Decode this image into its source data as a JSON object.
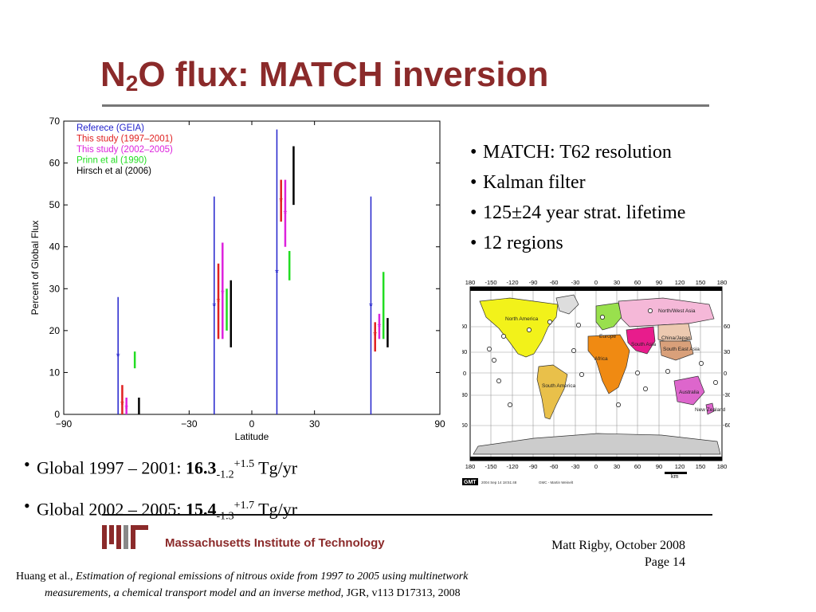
{
  "slide": {
    "title_main": "N",
    "title_sub": "2",
    "title_rest": "O flux: MATCH inversion"
  },
  "right_bullets": [
    "MATCH: T62 resolution",
    "Kalman filter",
    "125±24 year strat. lifetime",
    "12 regions"
  ],
  "bottom_bullets": [
    {
      "prefix": "Global 1997 – 2001: ",
      "value": "16.3",
      "minus": "-1.2",
      "plus": "+1.5",
      "unit": " Tg/yr"
    },
    {
      "prefix": "Global 2002 – 2005: ",
      "value": "15.4",
      "minus": "-1.3",
      "plus": "+1.7",
      "unit": " Tg/yr"
    }
  ],
  "bullet_symbol": "•",
  "chart_data": {
    "type": "scatter",
    "title": "",
    "xlabel": "Latitude",
    "ylabel": "Percent of Global Flux",
    "xlim": [
      -90,
      90
    ],
    "ylim": [
      0,
      70
    ],
    "xticks": [
      "−90",
      "−30",
      "0",
      "30",
      "90"
    ],
    "xtick_values": [
      -90,
      -30,
      0,
      30,
      90
    ],
    "yticks": [
      0,
      10,
      20,
      30,
      40,
      50,
      60,
      70
    ],
    "legend_position": "top-left",
    "series": [
      {
        "name": "Referece (GEIA)",
        "color": "#2222cc",
        "marker": "*",
        "points": [
          {
            "x": -64,
            "y": 14,
            "low": 0,
            "high": 28
          },
          {
            "x": -18,
            "y": 26,
            "low": 0,
            "high": 52
          },
          {
            "x": 12,
            "y": 34,
            "low": 0,
            "high": 68
          },
          {
            "x": 57,
            "y": 26,
            "low": 0,
            "high": 52
          }
        ]
      },
      {
        "name": "This study (1997–2001)",
        "color": "#e02020",
        "marker": "*",
        "points": [
          {
            "x": -62,
            "y": 2.5,
            "low": 0,
            "high": 7
          },
          {
            "x": -16,
            "y": 27,
            "low": 18,
            "high": 36
          },
          {
            "x": 14,
            "y": 51,
            "low": 46,
            "high": 56
          },
          {
            "x": 59,
            "y": 19,
            "low": 15,
            "high": 22
          }
        ]
      },
      {
        "name": "This study (2002–2005)",
        "color": "#dd22dd",
        "marker": "*",
        "points": [
          {
            "x": -60,
            "y": 1.5,
            "low": 0,
            "high": 4
          },
          {
            "x": -14,
            "y": 29,
            "low": 18,
            "high": 41
          },
          {
            "x": 16,
            "y": 48,
            "low": 40,
            "high": 56
          },
          {
            "x": 61,
            "y": 21,
            "low": 18,
            "high": 24
          }
        ]
      },
      {
        "name": "Prinn et al (1990)",
        "color": "#22dd22",
        "marker": "none",
        "points": [
          {
            "x": -56,
            "y": 12.5,
            "low": 11,
            "high": 15
          },
          {
            "x": -12,
            "y": 25,
            "low": 20,
            "high": 30
          },
          {
            "x": 18,
            "y": 36,
            "low": 32,
            "high": 39
          },
          {
            "x": 63,
            "y": 26,
            "low": 18,
            "high": 34
          }
        ]
      },
      {
        "name": "Hirsch et al (2006)",
        "color": "#000000",
        "marker": "none",
        "points": [
          {
            "x": -54,
            "y": 2,
            "low": 0,
            "high": 4
          },
          {
            "x": -10,
            "y": 24,
            "low": 16,
            "high": 32
          },
          {
            "x": 20,
            "y": 54,
            "low": 50,
            "high": 64
          },
          {
            "x": 65,
            "y": 20,
            "low": 16,
            "high": 23
          }
        ]
      }
    ]
  },
  "map": {
    "lon_labels": [
      "180",
      "-150",
      "-120",
      "-90",
      "-60",
      "-30",
      "0",
      "30",
      "60",
      "90",
      "120",
      "150",
      "180"
    ],
    "lat_labels": [
      "60",
      "30",
      "0",
      "-30",
      "-60"
    ],
    "regions": [
      {
        "label": "North America",
        "color": "#f2f21a"
      },
      {
        "label": "Europe",
        "color": "#99e04d"
      },
      {
        "label": "North/West Asia",
        "color": "#f5b8d8"
      },
      {
        "label": "South Asia",
        "color": "#e81c8c"
      },
      {
        "label": "China/Japan",
        "color": "#ecc9b0"
      },
      {
        "label": "South East Asia",
        "color": "#d9a07a"
      },
      {
        "label": "Africa",
        "color": "#f08a12"
      },
      {
        "label": "South America",
        "color": "#e9c04a"
      },
      {
        "label": "Australia",
        "color": "#dd66cc"
      },
      {
        "label": "New Zealand",
        "color": "#dd66cc"
      }
    ],
    "scale_label": "km",
    "gmt_badge": "GMT",
    "gmt_text": "2004 Sep 14 18:51:48",
    "gmt_credit": "GMC - Martin Weinelt"
  },
  "footer": {
    "institution": "Massachusetts Institute of Technology",
    "author": "Matt Rigby, October 2008",
    "page": "Page 14"
  },
  "citation": {
    "authors": "Huang et al., ",
    "title_part1": "Estimation of regional emissions of nitrous oxide from 1997 to 2005 using multinetwork",
    "title_part2": "measurements, a chemical transport model and an inverse method",
    "journal": ", JGR, v113 D17313, 2008"
  },
  "colors": {
    "title": "#8b2a2a",
    "mit_red": "#8b2a2a"
  }
}
